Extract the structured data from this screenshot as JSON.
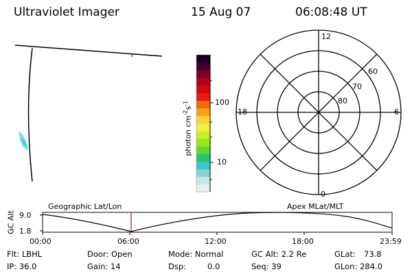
{
  "header": {
    "title": "Ultraviolet Imager",
    "date": "15 Aug 07",
    "time": "06:08:48 UT"
  },
  "colorbar": {
    "unit_label": "photon cm-2s-1",
    "ticks": [
      "100",
      "10"
    ],
    "colors": [
      "#e9f0f0",
      "#c6e6e6",
      "#86d5d5",
      "#3cc8c8",
      "#30c070",
      "#60d830",
      "#98e818",
      "#c8f028",
      "#f0f040",
      "#fad23c",
      "#f9a118",
      "#f06c0a",
      "#e81c0a",
      "#d00a14",
      "#b0001c",
      "#80002a",
      "#40002e",
      "#1a0020"
    ]
  },
  "polar_plot": {
    "hour_labels": [
      "12",
      "18",
      "6",
      "0"
    ],
    "lat_labels": [
      "60",
      "70",
      "80"
    ]
  },
  "timeline": {
    "left_label": "Geographic Lat/Lon",
    "right_label": "Apex MLat/MLT",
    "y_axis_label": "GC Alt",
    "y_ticks": [
      "9.0",
      "1.8"
    ],
    "x_ticks": [
      "00:00",
      "06:00",
      "12:00",
      "18:00",
      "23:59"
    ],
    "current_marker_time": "06:08:48",
    "marker_color": "#d00000"
  },
  "info": {
    "flt": "Flt: LBHL",
    "ip": "IP: 36.0",
    "door": "Door: Open",
    "gain": "Gain: 14",
    "mode": "Mode: Normal",
    "dsp": "Dsp:",
    "dsp_value": "0.0",
    "gc_alt": "GC Alt: 2.2 Re",
    "seq": "Seq: 39",
    "glat": "GLat:",
    "glat_value": "73.8",
    "glon": "GLon: 284.0"
  }
}
